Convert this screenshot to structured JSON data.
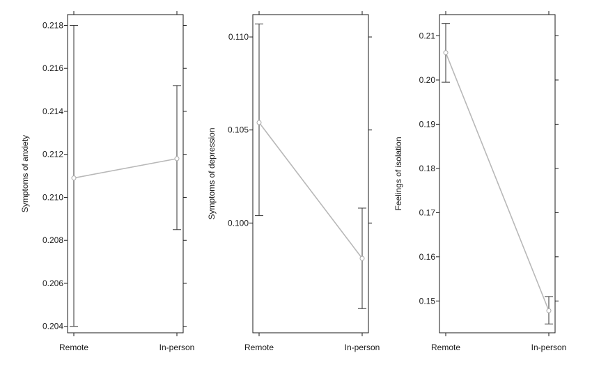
{
  "chart_data": [
    {
      "type": "line",
      "ylabel": "Symptoms of anxiety",
      "xlabel": "",
      "categories": [
        "Remote",
        "In-person"
      ],
      "values": [
        0.2109,
        0.2118
      ],
      "ci_lower": [
        0.204,
        0.2085
      ],
      "ci_upper": [
        0.218,
        0.2152
      ],
      "ylim": [
        0.2037,
        0.2185
      ],
      "yticks": [
        0.204,
        0.206,
        0.208,
        0.21,
        0.212,
        0.214,
        0.216,
        0.218
      ],
      "ytick_labels": [
        "0.204",
        "0.206",
        "0.208",
        "0.210",
        "0.212",
        "0.214",
        "0.216",
        "0.218"
      ],
      "grid": false,
      "line_color": "#b8b8b8",
      "errorbar_color": "#333333"
    },
    {
      "type": "line",
      "ylabel": "Symptoms of depression",
      "xlabel": "",
      "categories": [
        "Remote",
        "In-person"
      ],
      "values": [
        0.1054,
        0.0981
      ],
      "ci_lower": [
        0.1004,
        0.0954
      ],
      "ci_upper": [
        0.1107,
        0.1008
      ],
      "ylim": [
        0.0941,
        0.1112
      ],
      "yticks": [
        0.1,
        0.105,
        0.11
      ],
      "ytick_labels": [
        "0.100",
        "0.105",
        "0.110"
      ],
      "grid": false,
      "line_color": "#b8b8b8",
      "errorbar_color": "#333333"
    },
    {
      "type": "line",
      "ylabel": "Feelings of isolation",
      "xlabel": "",
      "categories": [
        "Remote",
        "In-person"
      ],
      "values": [
        0.2062,
        0.1478
      ],
      "ci_lower": [
        0.1995,
        0.1448
      ],
      "ci_upper": [
        0.2128,
        0.151
      ],
      "ylim": [
        0.1428,
        0.2148
      ],
      "yticks": [
        0.15,
        0.16,
        0.17,
        0.18,
        0.19,
        0.2,
        0.21
      ],
      "ytick_labels": [
        "0.15",
        "0.16",
        "0.17",
        "0.18",
        "0.19",
        "0.20",
        "0.21"
      ],
      "grid": false,
      "line_color": "#b8b8b8",
      "errorbar_color": "#333333"
    }
  ]
}
